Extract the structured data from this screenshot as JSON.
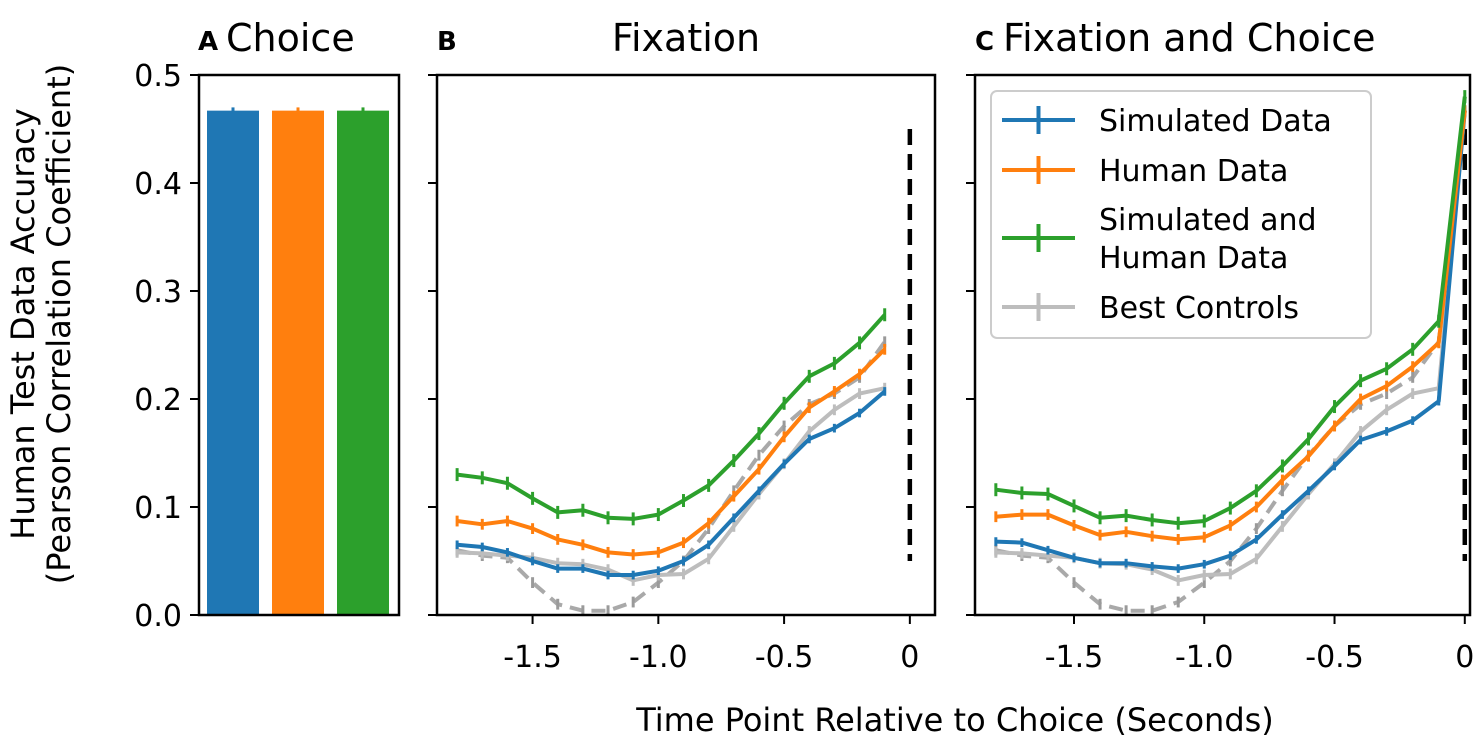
{
  "colors": {
    "simulated": "#1f77b4",
    "human": "#ff7f0e",
    "combined": "#2ca02c",
    "controls": "#bdbdbd",
    "controls_dashed": "#9a9a9a",
    "choice_marker": "#000000"
  },
  "panels": {
    "a": {
      "letter": "A",
      "title": "Choice"
    },
    "b": {
      "letter": "B",
      "title": "Fixation"
    },
    "c": {
      "letter": "C",
      "title": "Fixation and Choice"
    }
  },
  "ylabel_line1": "Human Test Data Accuracy",
  "ylabel_line2": "(Pearson Correlation Coefficient)",
  "xlabel": "Time Point Relative to Choice (Seconds)",
  "legend": {
    "items": [
      {
        "lines": [
          "Simulated Data"
        ],
        "color": "#1f77b4"
      },
      {
        "lines": [
          "Human Data"
        ],
        "color": "#ff7f0e"
      },
      {
        "lines": [
          "Simulated and",
          "Human Data"
        ],
        "color": "#2ca02c"
      },
      {
        "lines": [
          "Best Controls"
        ],
        "color": "#bdbdbd"
      }
    ],
    "placement": "upper-left of panel C"
  },
  "chart_data": [
    {
      "panel": "A",
      "type": "bar",
      "title": "Choice",
      "categories": [
        "Simulated Data",
        "Human Data",
        "Simulated and Human Data"
      ],
      "values": [
        0.467,
        0.467,
        0.467
      ],
      "errors": [
        0.003,
        0.003,
        0.003
      ],
      "colors": [
        "#1f77b4",
        "#ff7f0e",
        "#2ca02c"
      ],
      "ylim": [
        0,
        0.5
      ],
      "yticks": [
        "0.0",
        "0.1",
        "0.2",
        "0.3",
        "0.4",
        "0.5"
      ],
      "ylabel": "Human Test Data Accuracy (Pearson Correlation Coefficient)"
    },
    {
      "panel": "B",
      "type": "line",
      "title": "Fixation",
      "xlim": [
        -1.88,
        0.1
      ],
      "ylim": [
        0,
        0.5
      ],
      "xticks": [
        "-1.5",
        "-1.0",
        "-0.5",
        "0"
      ],
      "x": [
        -1.8,
        -1.7,
        -1.6,
        -1.5,
        -1.4,
        -1.3,
        -1.2,
        -1.1,
        -1.0,
        -0.9,
        -0.8,
        -0.7,
        -0.6,
        -0.5,
        -0.4,
        -0.3,
        -0.2,
        -0.1
      ],
      "series": [
        {
          "name": "Simulated Data",
          "color": "#1f77b4",
          "style": "solid",
          "values": [
            0.065,
            0.063,
            0.058,
            0.05,
            0.043,
            0.043,
            0.037,
            0.037,
            0.041,
            0.05,
            0.065,
            0.09,
            0.115,
            0.14,
            0.163,
            0.173,
            0.187,
            0.207
          ],
          "err": 0.004
        },
        {
          "name": "Human Data",
          "color": "#ff7f0e",
          "style": "solid",
          "values": [
            0.087,
            0.084,
            0.087,
            0.08,
            0.07,
            0.065,
            0.058,
            0.056,
            0.058,
            0.067,
            0.085,
            0.11,
            0.135,
            0.165,
            0.192,
            0.207,
            0.223,
            0.246
          ],
          "err": 0.005
        },
        {
          "name": "Simulated and Human Data",
          "color": "#2ca02c",
          "style": "solid",
          "values": [
            0.13,
            0.127,
            0.122,
            0.108,
            0.095,
            0.097,
            0.09,
            0.089,
            0.093,
            0.106,
            0.12,
            0.143,
            0.168,
            0.196,
            0.221,
            0.233,
            0.252,
            0.278
          ],
          "err": 0.006
        },
        {
          "name": "Best Controls",
          "color": "#bdbdbd",
          "style": "solid",
          "values": [
            0.058,
            0.057,
            0.055,
            0.053,
            0.048,
            0.047,
            0.042,
            0.032,
            0.037,
            0.038,
            0.052,
            0.082,
            0.112,
            0.14,
            0.17,
            0.19,
            0.205,
            0.21
          ],
          "err": 0.005
        },
        {
          "name": "Best Controls",
          "color": "#9a9a9a",
          "style": "dashed",
          "values": [
            0.06,
            0.055,
            0.053,
            0.03,
            0.01,
            0.004,
            0.004,
            0.012,
            0.03,
            0.05,
            0.08,
            0.115,
            0.148,
            0.175,
            0.195,
            0.205,
            0.22,
            0.253
          ],
          "err": 0.005
        }
      ],
      "choice_marker": {
        "x": 0.0,
        "ymin": 0.05,
        "ymax": 0.45
      }
    },
    {
      "panel": "C",
      "type": "line",
      "title": "Fixation and Choice",
      "xlim": [
        -1.88,
        0.02
      ],
      "ylim": [
        0,
        0.5
      ],
      "xticks": [
        "-1.5",
        "-1.0",
        "-0.5",
        "0"
      ],
      "x": [
        -1.8,
        -1.7,
        -1.6,
        -1.5,
        -1.4,
        -1.3,
        -1.2,
        -1.1,
        -1.0,
        -0.9,
        -0.8,
        -0.7,
        -0.6,
        -0.5,
        -0.4,
        -0.3,
        -0.2,
        -0.1,
        0.0
      ],
      "series": [
        {
          "name": "Simulated Data",
          "color": "#1f77b4",
          "style": "solid",
          "values": [
            0.068,
            0.067,
            0.06,
            0.053,
            0.048,
            0.048,
            0.045,
            0.043,
            0.047,
            0.055,
            0.07,
            0.093,
            0.115,
            0.138,
            0.162,
            0.17,
            0.18,
            0.198,
            0.467
          ],
          "err": 0.004
        },
        {
          "name": "Human Data",
          "color": "#ff7f0e",
          "style": "solid",
          "values": [
            0.091,
            0.093,
            0.093,
            0.083,
            0.074,
            0.077,
            0.073,
            0.07,
            0.072,
            0.083,
            0.1,
            0.125,
            0.147,
            0.175,
            0.2,
            0.212,
            0.23,
            0.252,
            0.467
          ],
          "err": 0.005
        },
        {
          "name": "Simulated and Human Data",
          "color": "#2ca02c",
          "style": "solid",
          "values": [
            0.116,
            0.113,
            0.112,
            0.101,
            0.09,
            0.092,
            0.088,
            0.085,
            0.087,
            0.099,
            0.115,
            0.138,
            0.163,
            0.193,
            0.217,
            0.228,
            0.246,
            0.272,
            0.48
          ],
          "err": 0.006
        },
        {
          "name": "Best Controls",
          "color": "#bdbdbd",
          "style": "solid",
          "values": [
            0.058,
            0.057,
            0.055,
            0.053,
            0.048,
            0.047,
            0.042,
            0.032,
            0.037,
            0.038,
            0.052,
            0.082,
            0.112,
            0.14,
            0.17,
            0.19,
            0.205,
            0.21,
            0.467
          ],
          "err": 0.005
        },
        {
          "name": "Best Controls",
          "color": "#9a9a9a",
          "style": "dashed",
          "values": [
            0.06,
            0.055,
            0.053,
            0.03,
            0.01,
            0.004,
            0.004,
            0.012,
            0.03,
            0.05,
            0.08,
            0.115,
            0.148,
            0.175,
            0.195,
            0.205,
            0.22,
            0.253,
            0.467
          ],
          "err": 0.005
        }
      ],
      "choice_marker": {
        "x": 0.0,
        "ymin": 0.05,
        "ymax": 0.45
      }
    }
  ]
}
